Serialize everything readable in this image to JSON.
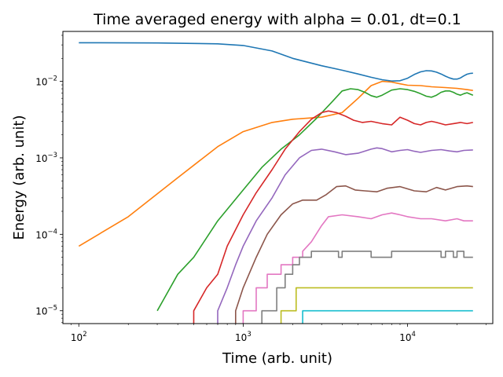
{
  "chart_data": {
    "type": "line",
    "title": "Time averaged energy with alpha = 0.01, dt=0.1",
    "xlabel": "Time (arb. unit)",
    "ylabel": "Energy (arb. unit)",
    "xscale": "log",
    "yscale": "log",
    "xlim": [
      80,
      33000
    ],
    "ylim": [
      6.8e-06,
      0.045
    ],
    "x_ticks": [
      {
        "value": 100,
        "base": "10",
        "exp": "2"
      },
      {
        "value": 1000,
        "base": "10",
        "exp": "3"
      },
      {
        "value": 10000,
        "base": "10",
        "exp": "4"
      }
    ],
    "y_ticks": [
      {
        "value": 1e-05,
        "base": "10",
        "exp": "−5"
      },
      {
        "value": 0.0001,
        "base": "10",
        "exp": "−4"
      },
      {
        "value": 0.001,
        "base": "10",
        "exp": "−3"
      },
      {
        "value": 0.01,
        "base": "10",
        "exp": "−2"
      }
    ],
    "grid": false,
    "legend": "none",
    "series": [
      {
        "color": "#1f77b4",
        "points": [
          [
            100,
            0.032
          ],
          [
            300,
            0.0318
          ],
          [
            700,
            0.031
          ],
          [
            1000,
            0.0295
          ],
          [
            1500,
            0.025
          ],
          [
            2000,
            0.02
          ],
          [
            3000,
            0.016
          ],
          [
            4000,
            0.014
          ],
          [
            5000,
            0.0125
          ],
          [
            6000,
            0.0113
          ],
          [
            7000,
            0.0105
          ],
          [
            8000,
            0.0101
          ],
          [
            9000,
            0.0102
          ],
          [
            10000,
            0.011
          ],
          [
            11000,
            0.0123
          ],
          [
            12000,
            0.0133
          ],
          [
            13000,
            0.0138
          ],
          [
            14000,
            0.0137
          ],
          [
            15000,
            0.0132
          ],
          [
            16000,
            0.0125
          ],
          [
            17000,
            0.0117
          ],
          [
            18000,
            0.0111
          ],
          [
            19000,
            0.0107
          ],
          [
            20000,
            0.0107
          ],
          [
            21000,
            0.0111
          ],
          [
            22000,
            0.0118
          ],
          [
            23000,
            0.0124
          ],
          [
            24000,
            0.0127
          ],
          [
            25000,
            0.0128
          ]
        ]
      },
      {
        "color": "#ff7f0e",
        "points": [
          [
            100,
            7e-05
          ],
          [
            200,
            0.00017
          ],
          [
            400,
            0.00055
          ],
          [
            700,
            0.0014
          ],
          [
            1000,
            0.0022
          ],
          [
            1500,
            0.0029
          ],
          [
            2000,
            0.0032
          ],
          [
            3000,
            0.0034
          ],
          [
            4000,
            0.0039
          ],
          [
            5000,
            0.006
          ],
          [
            6000,
            0.0088
          ],
          [
            7000,
            0.01
          ],
          [
            8000,
            0.0098
          ],
          [
            9000,
            0.0093
          ],
          [
            10000,
            0.0089
          ],
          [
            12000,
            0.0088
          ],
          [
            14000,
            0.0085
          ],
          [
            17000,
            0.0083
          ],
          [
            20000,
            0.0081
          ],
          [
            23000,
            0.0078
          ],
          [
            25000,
            0.0076
          ]
        ]
      },
      {
        "color": "#2ca02c",
        "points": [
          [
            300,
            1e-05
          ],
          [
            400,
            3e-05
          ],
          [
            500,
            5e-05
          ],
          [
            700,
            0.00015
          ],
          [
            1000,
            0.00038
          ],
          [
            1300,
            0.00075
          ],
          [
            1700,
            0.0013
          ],
          [
            2200,
            0.002
          ],
          [
            2800,
            0.0033
          ],
          [
            3500,
            0.0055
          ],
          [
            4000,
            0.0075
          ],
          [
            4500,
            0.008
          ],
          [
            5000,
            0.0078
          ],
          [
            5500,
            0.0072
          ],
          [
            6000,
            0.0065
          ],
          [
            6500,
            0.0062
          ],
          [
            7000,
            0.0066
          ],
          [
            8000,
            0.0077
          ],
          [
            9000,
            0.008
          ],
          [
            10000,
            0.0078
          ],
          [
            11000,
            0.0074
          ],
          [
            12000,
            0.0069
          ],
          [
            13000,
            0.0064
          ],
          [
            14000,
            0.0062
          ],
          [
            15000,
            0.0066
          ],
          [
            16000,
            0.0072
          ],
          [
            17000,
            0.0075
          ],
          [
            18000,
            0.0075
          ],
          [
            19000,
            0.0072
          ],
          [
            20000,
            0.0068
          ],
          [
            21000,
            0.0066
          ],
          [
            22000,
            0.0069
          ],
          [
            23000,
            0.0071
          ],
          [
            25000,
            0.0066
          ]
        ]
      },
      {
        "color": "#d62728",
        "points": [
          [
            500,
            6.8e-06
          ],
          [
            500,
            1e-05
          ],
          [
            600,
            2e-05
          ],
          [
            700,
            3e-05
          ],
          [
            800,
            7e-05
          ],
          [
            1000,
            0.00018
          ],
          [
            1200,
            0.00035
          ],
          [
            1500,
            0.0007
          ],
          [
            1800,
            0.0013
          ],
          [
            2200,
            0.0022
          ],
          [
            2600,
            0.0032
          ],
          [
            3000,
            0.0039
          ],
          [
            3300,
            0.0041
          ],
          [
            3700,
            0.0039
          ],
          [
            4200,
            0.0035
          ],
          [
            4700,
            0.0031
          ],
          [
            5300,
            0.0029
          ],
          [
            6000,
            0.003
          ],
          [
            7000,
            0.0028
          ],
          [
            8000,
            0.0027
          ],
          [
            9000,
            0.0034
          ],
          [
            10000,
            0.0031
          ],
          [
            11000,
            0.0028
          ],
          [
            12000,
            0.0027
          ],
          [
            13000,
            0.0029
          ],
          [
            14000,
            0.003
          ],
          [
            15000,
            0.0029
          ],
          [
            17000,
            0.0027
          ],
          [
            19000,
            0.0028
          ],
          [
            21000,
            0.0029
          ],
          [
            23000,
            0.0028
          ],
          [
            25000,
            0.0029
          ]
        ]
      },
      {
        "color": "#9467bd",
        "points": [
          [
            700,
            6.8e-06
          ],
          [
            700,
            1e-05
          ],
          [
            800,
            2e-05
          ],
          [
            900,
            4e-05
          ],
          [
            1000,
            7e-05
          ],
          [
            1200,
            0.00015
          ],
          [
            1500,
            0.0003
          ],
          [
            1800,
            0.0006
          ],
          [
            2200,
            0.001
          ],
          [
            2600,
            0.00125
          ],
          [
            3000,
            0.0013
          ],
          [
            3600,
            0.0012
          ],
          [
            4200,
            0.0011
          ],
          [
            5000,
            0.00115
          ],
          [
            6000,
            0.0013
          ],
          [
            6500,
            0.00135
          ],
          [
            7000,
            0.00132
          ],
          [
            8000,
            0.0012
          ],
          [
            9000,
            0.00125
          ],
          [
            10000,
            0.00128
          ],
          [
            11000,
            0.00122
          ],
          [
            12000,
            0.00118
          ],
          [
            14000,
            0.00125
          ],
          [
            16000,
            0.00128
          ],
          [
            18000,
            0.00123
          ],
          [
            20000,
            0.0012
          ],
          [
            22000,
            0.00125
          ],
          [
            25000,
            0.00127
          ]
        ]
      },
      {
        "color": "#8c564b",
        "points": [
          [
            900,
            6.8e-06
          ],
          [
            900,
            1e-05
          ],
          [
            1000,
            2e-05
          ],
          [
            1200,
            5e-05
          ],
          [
            1400,
            0.0001
          ],
          [
            1700,
            0.00018
          ],
          [
            2000,
            0.00025
          ],
          [
            2300,
            0.00028
          ],
          [
            2800,
            0.00028
          ],
          [
            3200,
            0.00033
          ],
          [
            3700,
            0.00042
          ],
          [
            4200,
            0.00043
          ],
          [
            4800,
            0.00038
          ],
          [
            5500,
            0.00037
          ],
          [
            6500,
            0.00036
          ],
          [
            7500,
            0.0004
          ],
          [
            9000,
            0.00042
          ],
          [
            11000,
            0.00037
          ],
          [
            13000,
            0.00036
          ],
          [
            15000,
            0.00041
          ],
          [
            17000,
            0.00038
          ],
          [
            20000,
            0.00042
          ],
          [
            23000,
            0.00043
          ],
          [
            25000,
            0.00042
          ]
        ]
      },
      {
        "color": "#e377c2",
        "points": [
          [
            1000,
            6.8e-06
          ],
          [
            1000,
            1e-05
          ],
          [
            1200,
            1e-05
          ],
          [
            1200,
            2e-05
          ],
          [
            1400,
            2e-05
          ],
          [
            1400,
            3e-05
          ],
          [
            1700,
            3e-05
          ],
          [
            1700,
            4e-05
          ],
          [
            2000,
            4e-05
          ],
          [
            2000,
            5e-05
          ],
          [
            2300,
            5e-05
          ],
          [
            2300,
            6e-05
          ],
          [
            2600,
            8e-05
          ],
          [
            3000,
            0.00013
          ],
          [
            3300,
            0.00017
          ],
          [
            4000,
            0.00018
          ],
          [
            5000,
            0.00017
          ],
          [
            6000,
            0.00016
          ],
          [
            7000,
            0.00018
          ],
          [
            8000,
            0.00019
          ],
          [
            9000,
            0.00018
          ],
          [
            10000,
            0.00017
          ],
          [
            12000,
            0.00016
          ],
          [
            14000,
            0.00016
          ],
          [
            17000,
            0.00015
          ],
          [
            20000,
            0.00016
          ],
          [
            22000,
            0.00015
          ],
          [
            25000,
            0.00015
          ]
        ]
      },
      {
        "color": "#7f7f7f",
        "points": [
          [
            1300,
            6.8e-06
          ],
          [
            1300,
            1e-05
          ],
          [
            1600,
            1e-05
          ],
          [
            1600,
            2e-05
          ],
          [
            1800,
            2e-05
          ],
          [
            1800,
            3e-05
          ],
          [
            2000,
            3e-05
          ],
          [
            2000,
            4e-05
          ],
          [
            2200,
            4e-05
          ],
          [
            2200,
            5e-05
          ],
          [
            2600,
            5e-05
          ],
          [
            2600,
            6e-05
          ],
          [
            3800,
            6e-05
          ],
          [
            3800,
            5e-05
          ],
          [
            4000,
            5e-05
          ],
          [
            4000,
            6e-05
          ],
          [
            6000,
            6e-05
          ],
          [
            6000,
            5e-05
          ],
          [
            8000,
            5e-05
          ],
          [
            8000,
            6e-05
          ],
          [
            16000,
            6e-05
          ],
          [
            16000,
            5e-05
          ],
          [
            17000,
            5e-05
          ],
          [
            17000,
            6e-05
          ],
          [
            19000,
            6e-05
          ],
          [
            19000,
            5e-05
          ],
          [
            20000,
            5e-05
          ],
          [
            20000,
            6e-05
          ],
          [
            22000,
            6e-05
          ],
          [
            22000,
            5e-05
          ],
          [
            25000,
            5e-05
          ]
        ]
      },
      {
        "color": "#bcbd22",
        "points": [
          [
            1700,
            6.8e-06
          ],
          [
            1700,
            1e-05
          ],
          [
            2100,
            1e-05
          ],
          [
            2100,
            2e-05
          ],
          [
            25000,
            2e-05
          ]
        ]
      },
      {
        "color": "#17becf",
        "points": [
          [
            2300,
            6.8e-06
          ],
          [
            2300,
            1e-05
          ],
          [
            25000,
            1e-05
          ]
        ]
      }
    ]
  }
}
